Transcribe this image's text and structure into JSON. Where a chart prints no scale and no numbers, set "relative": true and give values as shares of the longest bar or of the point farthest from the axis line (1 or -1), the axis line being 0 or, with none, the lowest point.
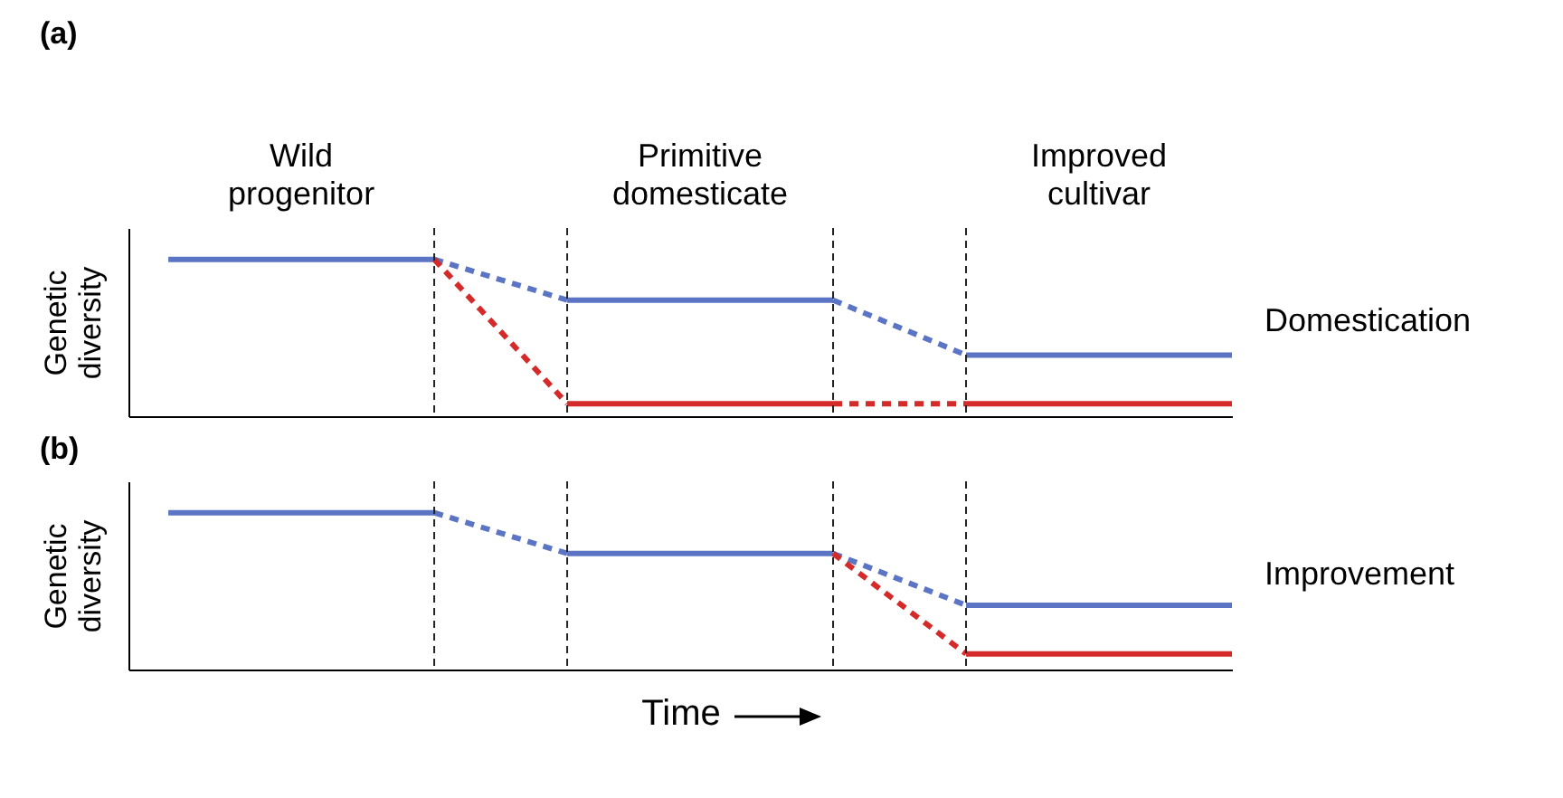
{
  "chart_data": [
    {
      "type": "line",
      "title": "(a)",
      "ylabel": "Genetic diversity",
      "relative": true,
      "tick_labels": false,
      "grid": "x",
      "categories": [
        null,
        null,
        null,
        null,
        null,
        null,
        null,
        null,
        null
      ],
      "annotations": [
        "Wild progenitor",
        "Primitive domesticate",
        "Improved cultivar",
        "Domestication"
      ],
      "series": [
        {
          "color": "#5b74c4",
          "line_style": "solid",
          "values": [
            1,
            1,
            1,
            null,
            null,
            null,
            null,
            null,
            null
          ]
        },
        {
          "color": "#5b74c4",
          "line_style": "solid",
          "values": [
            null,
            null,
            null,
            0.74,
            0.74,
            0.74,
            null,
            null,
            null
          ]
        },
        {
          "color": "#5b74c4",
          "line_style": "solid",
          "values": [
            null,
            null,
            null,
            null,
            null,
            null,
            0.39,
            0.39,
            0.39
          ]
        },
        {
          "color": "#5b74c4",
          "line_style": "dashed",
          "values": [
            null,
            null,
            1,
            0.74,
            null,
            0.74,
            0.39,
            null,
            null
          ]
        },
        {
          "color": "#d42a2a",
          "line_style": "solid",
          "values": [
            null,
            null,
            null,
            0.08,
            0.08,
            0.08,
            null,
            null,
            null
          ]
        },
        {
          "color": "#d42a2a",
          "line_style": "solid",
          "values": [
            null,
            null,
            null,
            null,
            null,
            null,
            0.08,
            0.08,
            0.08
          ]
        },
        {
          "color": "#d42a2a",
          "line_style": "dashed",
          "values": [
            null,
            null,
            1,
            0.08,
            null,
            0.08,
            0.08,
            null,
            null
          ]
        }
      ]
    },
    {
      "type": "line",
      "title": "(b)",
      "ylabel": "Genetic diversity",
      "xlabel": "Time",
      "relative": true,
      "tick_labels": false,
      "grid": "x",
      "categories": [
        null,
        null,
        null,
        null,
        null,
        null,
        null,
        null,
        null
      ],
      "annotations": [
        "Improvement"
      ],
      "series": [
        {
          "color": "#5b74c4",
          "line_style": "solid",
          "values": [
            1,
            1,
            1,
            null,
            null,
            null,
            null,
            null,
            null
          ]
        },
        {
          "color": "#5b74c4",
          "line_style": "solid",
          "values": [
            null,
            null,
            null,
            0.74,
            0.74,
            0.74,
            null,
            null,
            null
          ]
        },
        {
          "color": "#5b74c4",
          "line_style": "solid",
          "values": [
            null,
            null,
            null,
            null,
            null,
            null,
            0.41,
            0.41,
            0.41
          ]
        },
        {
          "color": "#5b74c4",
          "line_style": "dashed",
          "values": [
            null,
            null,
            1,
            0.74,
            null,
            0.74,
            0.41,
            null,
            null
          ]
        },
        {
          "color": "#d42a2a",
          "line_style": "solid",
          "values": [
            null,
            null,
            null,
            null,
            null,
            null,
            0.1,
            0.1,
            0.1
          ]
        },
        {
          "color": "#d42a2a",
          "line_style": "dashed",
          "values": [
            null,
            null,
            null,
            null,
            null,
            0.74,
            0.1,
            null,
            null
          ]
        }
      ]
    }
  ]
}
